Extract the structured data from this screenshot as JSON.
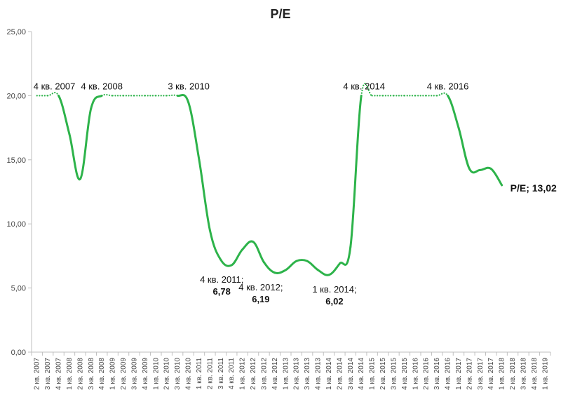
{
  "chart_data": {
    "type": "line",
    "title": "P/E",
    "xlabel": "",
    "ylabel": "",
    "ylim": [
      0,
      25
    ],
    "yticks": [
      "0,00",
      "5,00",
      "10,00",
      "15,00",
      "20,00",
      "25,00"
    ],
    "grid": false,
    "categories": [
      "2 кв. 2007",
      "3 кв. 2007",
      "4 кв. 2007",
      "1 кв. 2008",
      "2 кв. 2008",
      "3 кв. 2008",
      "4 кв. 2008",
      "1 кв. 2009",
      "2 кв. 2009",
      "3 кв. 2009",
      "4 кв. 2009",
      "1 кв. 2010",
      "2 кв. 2010",
      "3 кв. 2010",
      "4 кв. 2010",
      "1 кв. 2011",
      "2 кв. 2011",
      "3 кв. 2011",
      "4 кв. 2011",
      "1 кв. 2012",
      "2 кв. 2012",
      "3 кв. 2012",
      "4 кв. 2012",
      "1 кв. 2013",
      "2 кв. 2013",
      "3 кв. 2013",
      "4 кв. 2013",
      "1 кв. 2014",
      "2 кв. 2014",
      "3 кв. 2014",
      "4 кв. 2014",
      "1 кв. 2015",
      "2 кв. 2015",
      "3 кв. 2015",
      "4 кв. 2015",
      "1 кв. 2016",
      "2 кв. 2016",
      "3 кв. 2016",
      "4 кв. 2016",
      "1 кв. 2017",
      "2 кв. 2017",
      "3 кв. 2017",
      "4 кв. 2017",
      "1 кв. 2018",
      "2 кв. 2018",
      "3 кв. 2018",
      "4 кв. 2018",
      "1 кв. 2019"
    ],
    "series": [
      {
        "name": "P/E",
        "color": "#2db34a",
        "values": [
          20.0,
          20.0,
          20.0,
          17.0,
          13.5,
          19.0,
          20.0,
          20.0,
          20.0,
          20.0,
          20.0,
          20.0,
          20.0,
          20.0,
          19.5,
          15.0,
          9.5,
          7.2,
          6.78,
          8.0,
          8.6,
          7.0,
          6.19,
          6.4,
          7.1,
          7.1,
          6.4,
          6.02,
          6.9,
          8.2,
          20.0,
          20.0,
          20.0,
          20.0,
          20.0,
          20.0,
          20.0,
          20.0,
          20.0,
          17.5,
          14.3,
          14.2,
          14.3,
          13.02,
          null,
          null,
          null,
          null
        ],
        "dotted_ranges": [
          [
            0,
            2
          ],
          [
            6,
            13
          ],
          [
            30,
            38
          ]
        ]
      }
    ],
    "annotations": [
      {
        "index": 2,
        "lines": [
          "4 кв. 2007"
        ],
        "bold_last": false,
        "pos": "above"
      },
      {
        "index": 6,
        "lines": [
          "4 кв. 2008"
        ],
        "bold_last": false,
        "pos": "above"
      },
      {
        "index": 13,
        "lines": [
          "3 кв. 2010"
        ],
        "bold_last": false,
        "pos": "above"
      },
      {
        "index": 18,
        "lines": [
          "4 кв. 2011;",
          "6,78"
        ],
        "bold_last": true,
        "pos": "below"
      },
      {
        "index": 22,
        "lines": [
          "4 кв. 2012;",
          "6,19"
        ],
        "bold_last": true,
        "pos": "below"
      },
      {
        "index": 27,
        "lines": [
          "1 кв. 2014;",
          "6,02"
        ],
        "bold_last": true,
        "pos": "below"
      },
      {
        "index": 30,
        "lines": [
          "4 кв. 2014"
        ],
        "bold_last": false,
        "pos": "above"
      },
      {
        "index": 38,
        "lines": [
          "4 кв. 2016"
        ],
        "bold_last": false,
        "pos": "above"
      }
    ],
    "end_label": {
      "index": 43,
      "text": "P/E; 13,02"
    }
  }
}
